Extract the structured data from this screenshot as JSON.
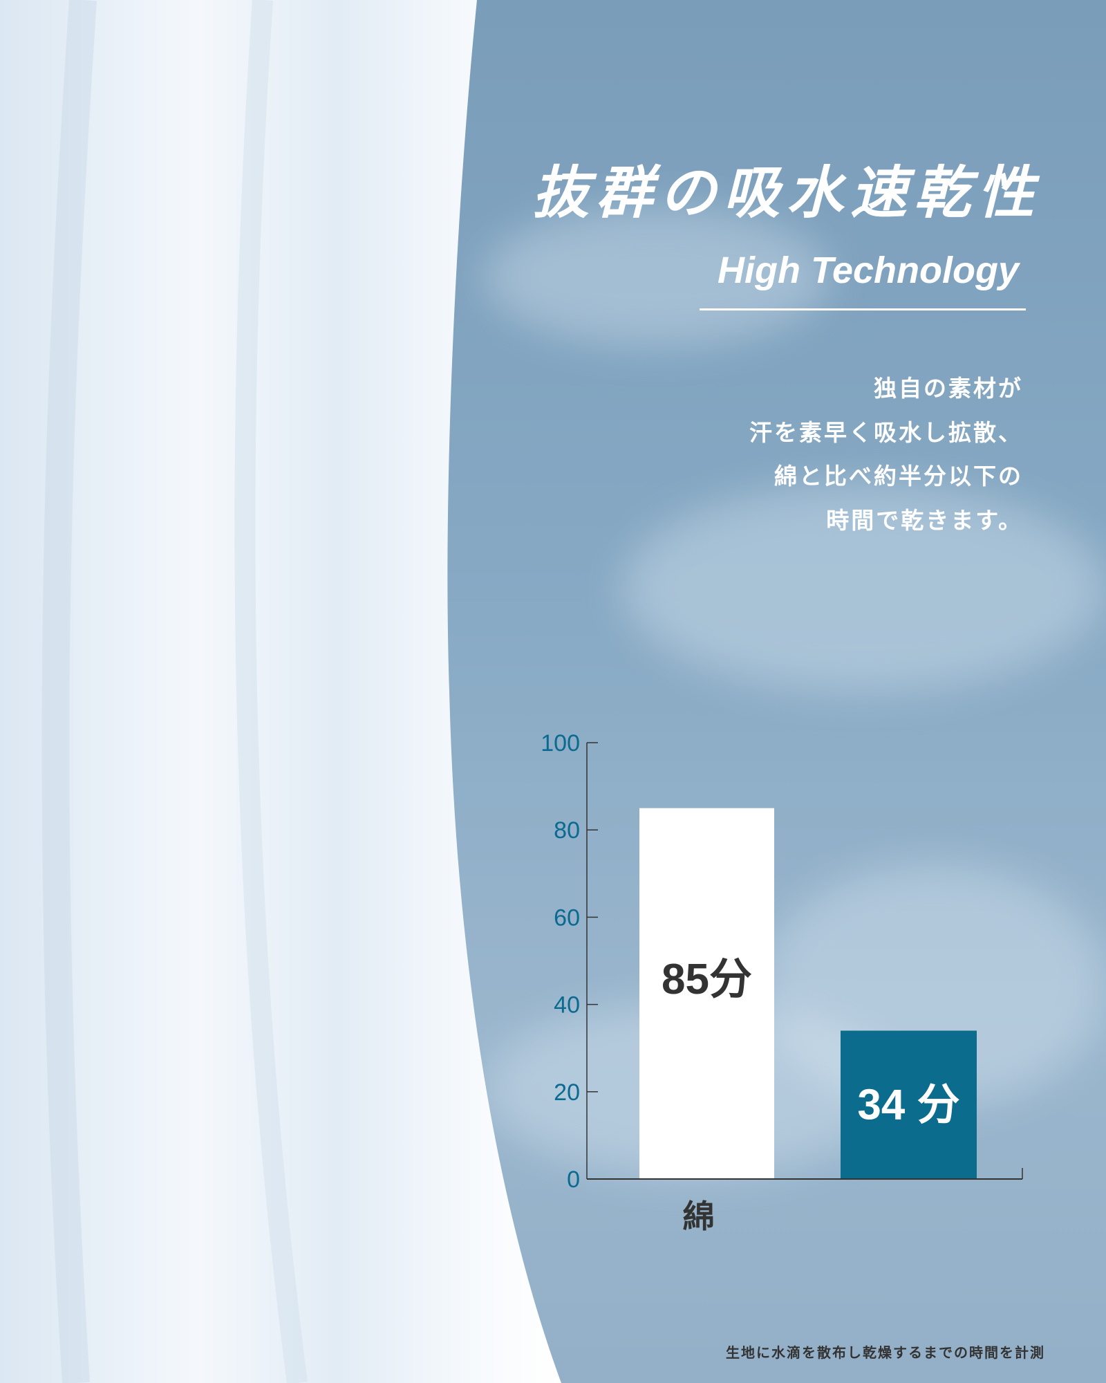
{
  "header": {
    "title": "抜群の吸水速乾性",
    "subtitle": "High Technology"
  },
  "description": {
    "lines": [
      "独自の素材が",
      "汗を素早く吸水し拡散、",
      "綿と比べ約半分以下の",
      "時間で乾きます。"
    ]
  },
  "footnote": "生地に水滴を散布し乾燥するまでの時間を計測",
  "colors": {
    "background": "#7a9dba",
    "accent_bar": "#0b6c8e",
    "tick_label": "#0b6a8f",
    "cotton_bar": "#ffffff"
  },
  "chart_data": {
    "type": "bar",
    "categories": [
      "綿",
      ""
    ],
    "values": [
      85,
      34
    ],
    "value_labels": [
      "85分",
      "34 分"
    ],
    "yticks": [
      "0",
      "20",
      "40",
      "60",
      "80",
      "100"
    ],
    "ylim": [
      0,
      100
    ],
    "grid": false,
    "bar_colors": [
      "#ffffff",
      "#0b6c8e"
    ],
    "label_colors": [
      "#333333",
      "#ffffff"
    ]
  }
}
